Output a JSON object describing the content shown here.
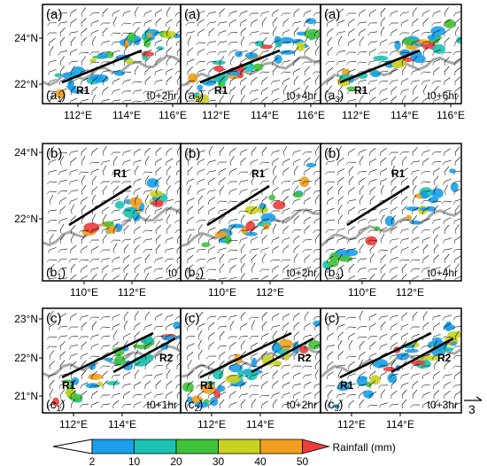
{
  "rows": [
    {
      "row_label": "(a)",
      "y_ticks": [
        "24°N",
        "22°N"
      ],
      "x_ticks": [
        "112°E",
        "114°E",
        "116°E"
      ],
      "panels": [
        {
          "sub_main": "(a",
          "sub_idx": "1",
          "time": "t0+2hr",
          "lines": [
            {
              "label": "R1"
            }
          ]
        },
        {
          "sub_main": "(a",
          "sub_idx": "2",
          "time": "t0+4hr",
          "lines": [
            {
              "label": "R1"
            }
          ]
        },
        {
          "sub_main": "(a",
          "sub_idx": "3",
          "time": "t0+6hr",
          "lines": [
            {
              "label": "R1"
            }
          ]
        }
      ]
    },
    {
      "row_label": "(b)",
      "y_ticks": [
        "24°N",
        "22°N"
      ],
      "x_ticks": [
        "110°E",
        "112°E"
      ],
      "panels": [
        {
          "sub_main": "(b",
          "sub_idx": "1",
          "time": "t0",
          "lines": [
            {
              "label": "R1"
            }
          ]
        },
        {
          "sub_main": "(b",
          "sub_idx": "2",
          "time": "t0+2hr",
          "lines": [
            {
              "label": "R1"
            }
          ]
        },
        {
          "sub_main": "(b",
          "sub_idx": "3",
          "time": "t0+4hr",
          "lines": [
            {
              "label": "R1"
            }
          ]
        }
      ]
    },
    {
      "row_label": "(c)",
      "y_ticks": [
        "23°N",
        "22°N",
        "21°N"
      ],
      "x_ticks": [
        "112°E",
        "114°E"
      ],
      "panels": [
        {
          "sub_main": "(c",
          "sub_idx": "1",
          "time": "t0+1hr",
          "lines": [
            {
              "label": "R1"
            },
            {
              "label": "R2"
            }
          ]
        },
        {
          "sub_main": "(c",
          "sub_idx": "2",
          "time": "t0+2hr",
          "lines": [
            {
              "label": "R1"
            },
            {
              "label": "R2"
            }
          ]
        },
        {
          "sub_main": "(c",
          "sub_idx": "3",
          "time": "t0+3hr",
          "lines": [
            {
              "label": "R1"
            },
            {
              "label": "R2"
            }
          ]
        }
      ]
    }
  ],
  "wind_reference": "3",
  "colorbar": {
    "label": "Rainfall (mm)",
    "ticks": [
      "2",
      "10",
      "20",
      "30",
      "40",
      "50"
    ],
    "colors": [
      "#1aa0e8",
      "#19c3b0",
      "#3fc23a",
      "#c8d21e",
      "#f0a01e",
      "#ec3c3c"
    ]
  },
  "chart_data": {
    "type": "map",
    "variable": "Rainfall (mm)",
    "color_levels": [
      2,
      10,
      20,
      30,
      40,
      50
    ],
    "panels": [
      {
        "id": "a1",
        "time": "t0+2hr",
        "x_ticks": [
          "112°E",
          "114°E",
          "116°E"
        ],
        "y_ticks": [
          "24°N",
          "22°N"
        ],
        "lines": [
          "R1"
        ]
      },
      {
        "id": "a2",
        "time": "t0+4hr",
        "x_ticks": [
          "112°E",
          "114°E",
          "116°E"
        ],
        "y_ticks": [
          "24°N",
          "22°N"
        ],
        "lines": [
          "R1"
        ]
      },
      {
        "id": "a3",
        "time": "t0+6hr",
        "x_ticks": [
          "112°E",
          "114°E",
          "116°E"
        ],
        "y_ticks": [
          "24°N",
          "22°N"
        ],
        "lines": [
          "R1"
        ]
      },
      {
        "id": "b1",
        "time": "t0",
        "x_ticks": [
          "110°E",
          "112°E"
        ],
        "y_ticks": [
          "24°N",
          "22°N"
        ],
        "lines": [
          "R1"
        ]
      },
      {
        "id": "b2",
        "time": "t0+2hr",
        "x_ticks": [
          "110°E",
          "112°E"
        ],
        "y_ticks": [
          "24°N",
          "22°N"
        ],
        "lines": [
          "R1"
        ]
      },
      {
        "id": "b3",
        "time": "t0+4hr",
        "x_ticks": [
          "110°E",
          "112°E"
        ],
        "y_ticks": [
          "24°N",
          "22°N"
        ],
        "lines": [
          "R1"
        ]
      },
      {
        "id": "c1",
        "time": "t0+1hr",
        "x_ticks": [
          "112°E",
          "114°E"
        ],
        "y_ticks": [
          "23°N",
          "22°N",
          "21°N"
        ],
        "lines": [
          "R1",
          "R2"
        ]
      },
      {
        "id": "c2",
        "time": "t0+2hr",
        "x_ticks": [
          "112°E",
          "114°E"
        ],
        "y_ticks": [
          "23°N",
          "22°N",
          "21°N"
        ],
        "lines": [
          "R1",
          "R2"
        ]
      },
      {
        "id": "c3",
        "time": "t0+3hr",
        "x_ticks": [
          "112°E",
          "114°E"
        ],
        "y_ticks": [
          "23°N",
          "22°N",
          "21°N"
        ],
        "lines": [
          "R1",
          "R2"
        ]
      }
    ]
  }
}
